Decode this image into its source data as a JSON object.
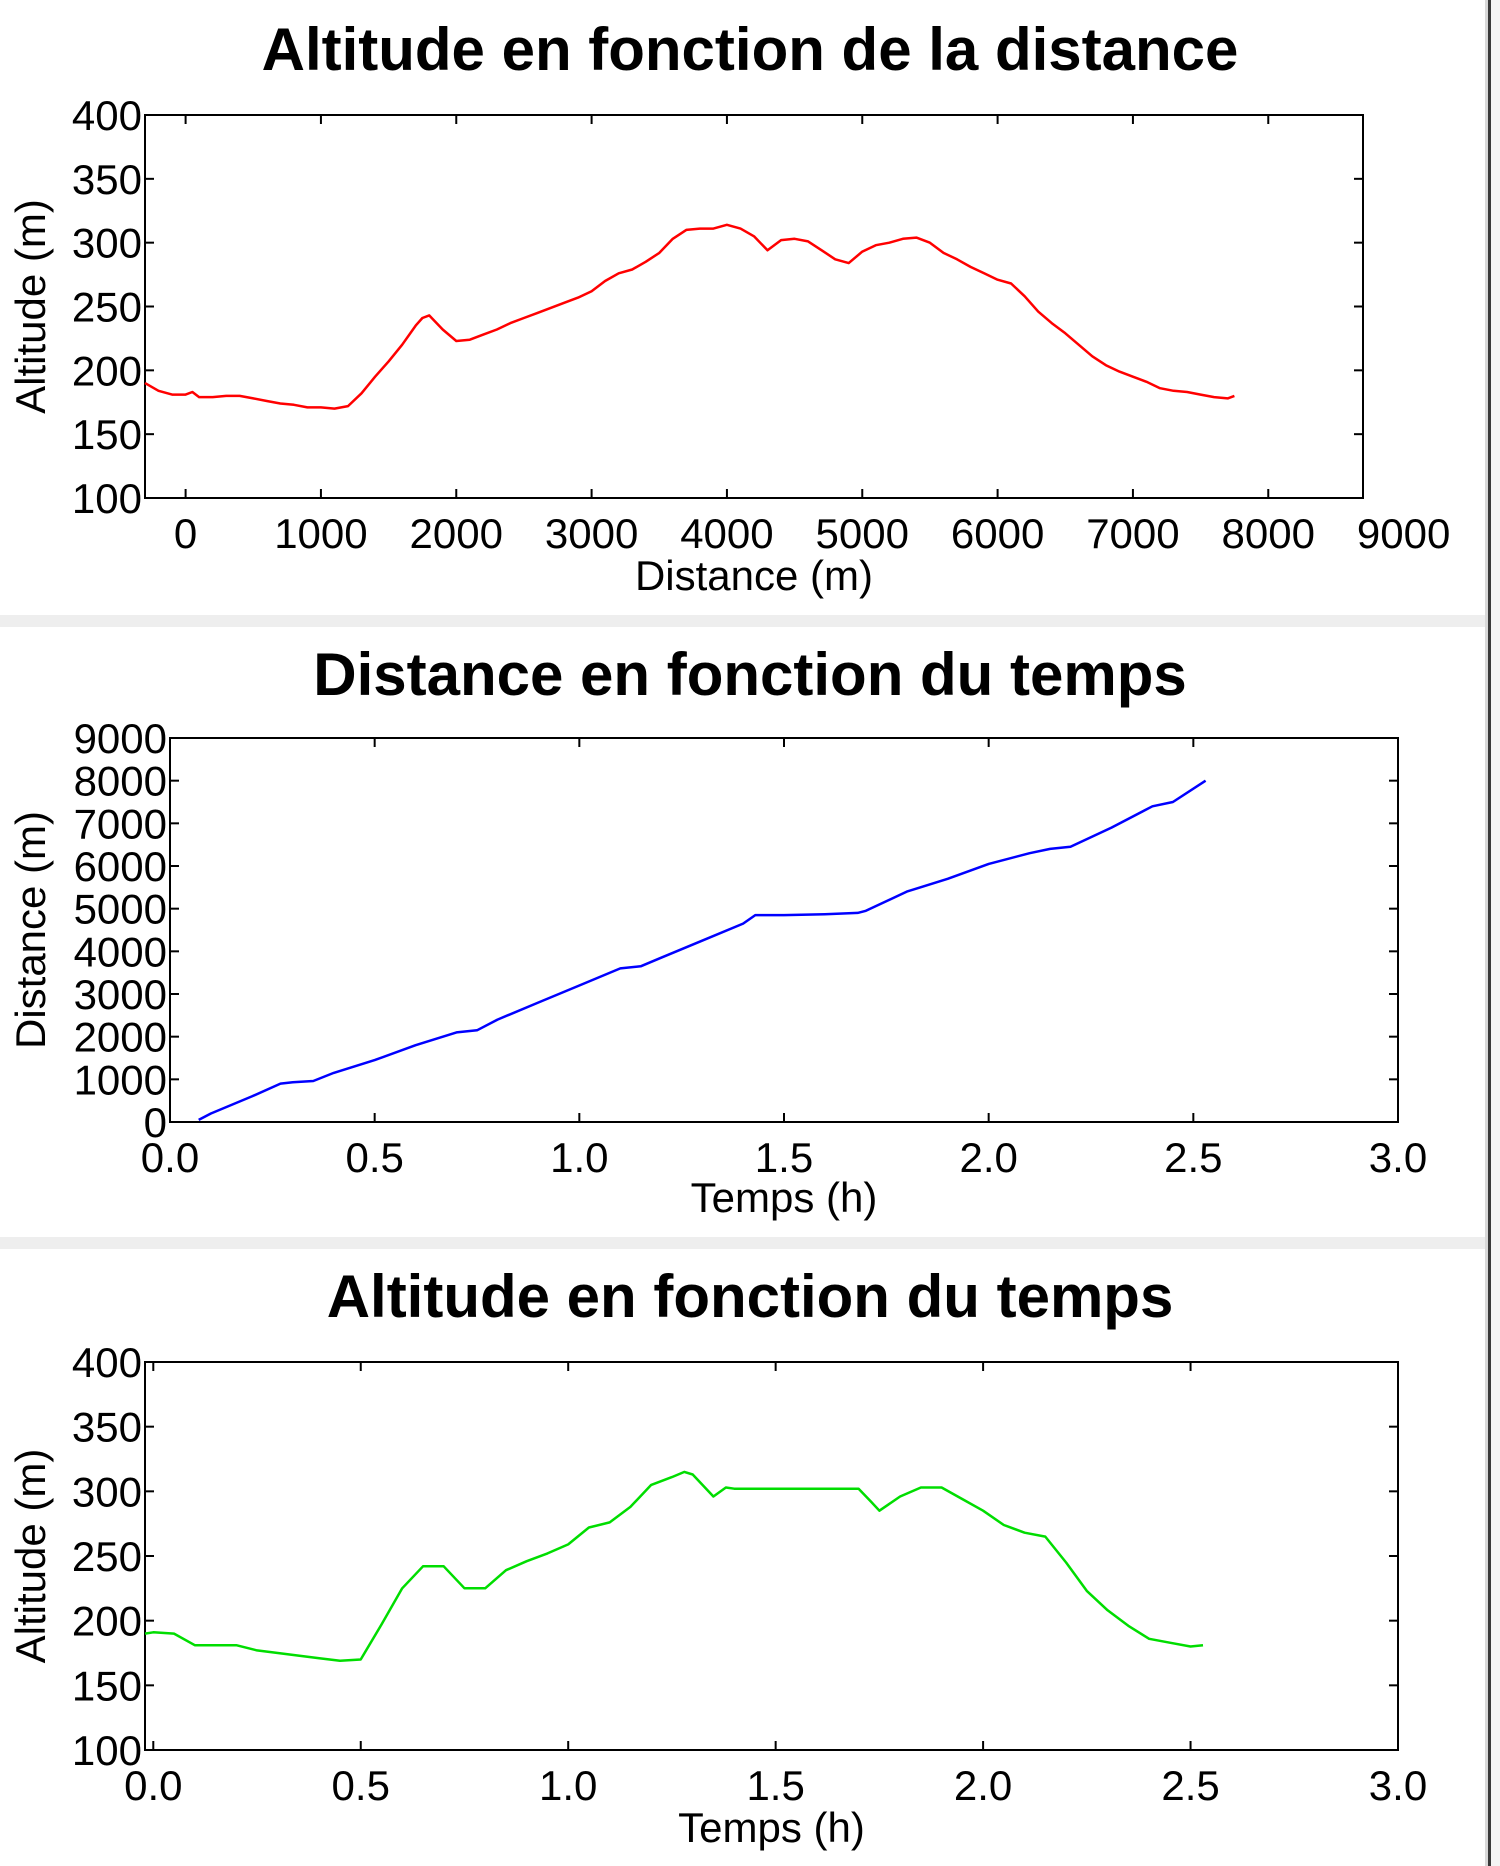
{
  "charts": [
    {
      "id": "altitude-distance",
      "title": "Altitude en fonction de la distance",
      "xlabel": "Distance (m)",
      "ylabel": "Altitude (m)",
      "color": "#ff0000"
    },
    {
      "id": "distance-time",
      "title": "Distance en fonction du temps",
      "xlabel": "Temps (h)",
      "ylabel": "Distance (m)",
      "color": "#0000ff"
    },
    {
      "id": "altitude-time",
      "title": "Altitude en fonction du temps",
      "xlabel": "Temps (h)",
      "ylabel": "Altitude (m)",
      "color": "#00dd00"
    }
  ],
  "chart_data": [
    {
      "type": "line",
      "title": "Altitude en fonction de la distance",
      "xlabel": "Distance (m)",
      "ylabel": "Altitude (m)",
      "xlim": [
        -300,
        8700
      ],
      "ylim": [
        100,
        400
      ],
      "xticks": [
        0,
        1000,
        2000,
        3000,
        4000,
        5000,
        6000,
        7000,
        8000,
        9000
      ],
      "yticks": [
        100,
        150,
        200,
        250,
        300,
        350,
        400
      ],
      "xtick_labels": [
        "0",
        "1000",
        "2000",
        "3000",
        "4000",
        "5000",
        "6000",
        "7000",
        "8000",
        "9000"
      ],
      "ytick_labels": [
        "100",
        "150",
        "200",
        "250",
        "300",
        "350",
        "400"
      ],
      "grid": false,
      "series": [
        {
          "color": "#ff0000",
          "x": [
            -300,
            -200,
            -100,
            0,
            50,
            100,
            200,
            300,
            400,
            500,
            600,
            700,
            800,
            900,
            1000,
            1100,
            1200,
            1300,
            1400,
            1500,
            1600,
            1700,
            1750,
            1800,
            1900,
            2000,
            2100,
            2200,
            2300,
            2400,
            2500,
            2600,
            2700,
            2800,
            2900,
            3000,
            3100,
            3200,
            3300,
            3400,
            3500,
            3600,
            3700,
            3800,
            3900,
            4000,
            4100,
            4200,
            4300,
            4400,
            4500,
            4600,
            4700,
            4800,
            4900,
            5000,
            5100,
            5200,
            5300,
            5400,
            5500,
            5600,
            5700,
            5800,
            5900,
            6000,
            6100,
            6200,
            6300,
            6400,
            6500,
            6600,
            6700,
            6800,
            6900,
            7000,
            7100,
            7200,
            7300,
            7400,
            7500,
            7600,
            7700,
            7750
          ],
          "y": [
            190,
            184,
            181,
            181,
            183,
            179,
            179,
            180,
            180,
            178,
            176,
            174,
            173,
            171,
            171,
            170,
            172,
            182,
            195,
            207,
            220,
            235,
            241,
            243,
            232,
            223,
            224,
            228,
            232,
            237,
            241,
            245,
            249,
            253,
            257,
            262,
            270,
            276,
            279,
            285,
            292,
            303,
            310,
            311,
            311,
            314,
            311,
            305,
            294,
            302,
            303,
            301,
            294,
            287,
            284,
            293,
            298,
            300,
            303,
            304,
            300,
            292,
            287,
            281,
            276,
            271,
            268,
            258,
            246,
            237,
            229,
            220,
            211,
            204,
            199,
            195,
            191,
            186,
            184,
            183,
            181,
            179,
            178,
            180
          ]
        }
      ]
    },
    {
      "type": "line",
      "title": "Distance en fonction du temps",
      "xlabel": "Temps (h)",
      "ylabel": "Distance (m)",
      "xlim": [
        0,
        3.0
      ],
      "ylim": [
        0,
        9000
      ],
      "xticks": [
        0.0,
        0.5,
        1.0,
        1.5,
        2.0,
        2.5,
        3.0
      ],
      "yticks": [
        0,
        1000,
        2000,
        3000,
        4000,
        5000,
        6000,
        7000,
        8000,
        9000
      ],
      "xtick_labels": [
        "0.0",
        "0.5",
        "1.0",
        "1.5",
        "2.0",
        "2.5",
        "3.0"
      ],
      "ytick_labels": [
        "0",
        "1000",
        "2000",
        "3000",
        "4000",
        "5000",
        "6000",
        "7000",
        "8000",
        "9000"
      ],
      "grid": false,
      "series": [
        {
          "color": "#0000ff",
          "x": [
            0.07,
            0.1,
            0.2,
            0.27,
            0.3,
            0.35,
            0.4,
            0.5,
            0.6,
            0.7,
            0.75,
            0.8,
            0.9,
            1.0,
            1.1,
            1.15,
            1.2,
            1.3,
            1.4,
            1.43,
            1.5,
            1.6,
            1.68,
            1.7,
            1.8,
            1.9,
            2.0,
            2.1,
            2.15,
            2.2,
            2.3,
            2.4,
            2.45,
            2.53
          ],
          "y": [
            50,
            200,
            600,
            900,
            930,
            960,
            1150,
            1450,
            1800,
            2100,
            2150,
            2400,
            2800,
            3200,
            3600,
            3650,
            3850,
            4250,
            4650,
            4850,
            4850,
            4870,
            4900,
            4950,
            5400,
            5700,
            6050,
            6300,
            6400,
            6450,
            6900,
            7400,
            7500,
            8000
          ]
        }
      ]
    },
    {
      "type": "line",
      "title": "Altitude en fonction du temps",
      "xlabel": "Temps (h)",
      "ylabel": "Altitude (m)",
      "xlim": [
        -0.02,
        3.0
      ],
      "ylim": [
        100,
        400
      ],
      "xticks": [
        0.0,
        0.5,
        1.0,
        1.5,
        2.0,
        2.5,
        3.0
      ],
      "yticks": [
        100,
        150,
        200,
        250,
        300,
        350,
        400
      ],
      "xtick_labels": [
        "0.0",
        "0.5",
        "1.0",
        "1.5",
        "2.0",
        "2.5",
        "3.0"
      ],
      "ytick_labels": [
        "100",
        "150",
        "200",
        "250",
        "300",
        "350",
        "400"
      ],
      "grid": false,
      "series": [
        {
          "color": "#00dd00",
          "x": [
            -0.02,
            0.0,
            0.05,
            0.1,
            0.15,
            0.2,
            0.25,
            0.3,
            0.35,
            0.4,
            0.45,
            0.5,
            0.55,
            0.6,
            0.65,
            0.7,
            0.75,
            0.8,
            0.85,
            0.9,
            0.95,
            1.0,
            1.05,
            1.1,
            1.15,
            1.2,
            1.25,
            1.28,
            1.3,
            1.35,
            1.38,
            1.4,
            1.45,
            1.5,
            1.55,
            1.6,
            1.65,
            1.7,
            1.73,
            1.75,
            1.8,
            1.85,
            1.9,
            1.95,
            2.0,
            2.05,
            2.1,
            2.15,
            2.2,
            2.25,
            2.3,
            2.35,
            2.4,
            2.45,
            2.5,
            2.53
          ],
          "y": [
            190,
            191,
            190,
            181,
            181,
            181,
            177,
            175,
            173,
            171,
            169,
            170,
            197,
            225,
            242,
            242,
            225,
            225,
            239,
            246,
            252,
            259,
            272,
            276,
            288,
            305,
            311,
            315,
            313,
            296,
            303,
            302,
            302,
            302,
            302,
            302,
            302,
            302,
            292,
            285,
            296,
            303,
            303,
            294,
            285,
            274,
            268,
            265,
            245,
            223,
            208,
            196,
            186,
            183,
            180,
            181
          ]
        }
      ]
    }
  ]
}
